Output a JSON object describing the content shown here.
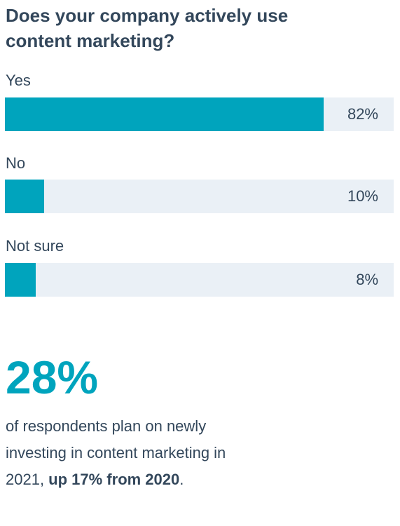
{
  "chart_data": {
    "type": "bar",
    "orientation": "horizontal",
    "title": "Does your company actively use content marketing?",
    "categories": [
      "Yes",
      "No",
      "Not sure"
    ],
    "values": [
      82,
      10,
      8
    ],
    "value_labels": [
      "82%",
      "10%",
      "8%"
    ],
    "xlim": [
      0,
      100
    ],
    "grid": false
  },
  "colors": {
    "bar_fill": "#00a4bd",
    "bar_track": "#eaf0f6",
    "text": "#33475b",
    "accent": "#00a4bd"
  },
  "stat": {
    "value": "28%",
    "text_before": "of respondents plan on newly investing in content marketing in 2021, ",
    "text_emphasis": "up 17% from 2020",
    "text_after": "."
  }
}
